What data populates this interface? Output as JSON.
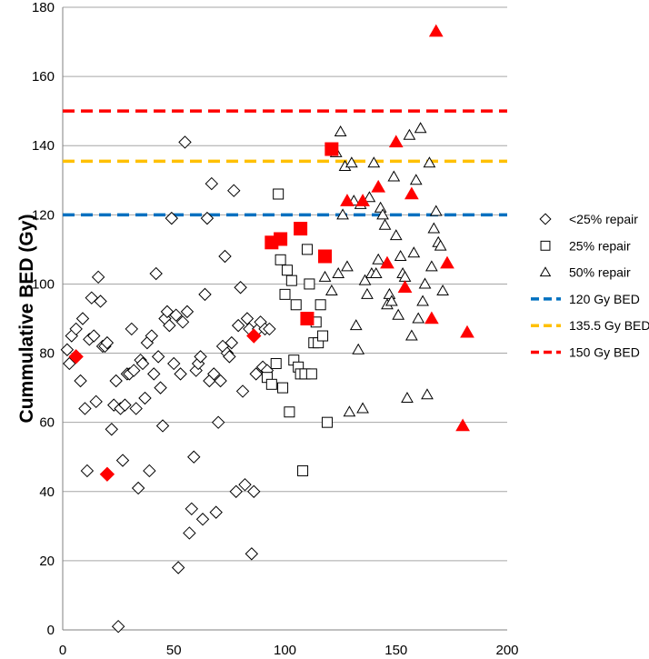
{
  "chart_data": {
    "type": "scatter",
    "title": "",
    "xlabel": "",
    "ylabel": "Cummulative BED (Gy)",
    "xlim": [
      0,
      200
    ],
    "ylim": [
      0,
      180
    ],
    "xticks": [
      0,
      50,
      100,
      150,
      200
    ],
    "yticks": [
      0,
      20,
      40,
      60,
      80,
      100,
      120,
      140,
      160,
      180
    ],
    "grid": "horizontal",
    "legend_position": "right",
    "series": [
      {
        "name": "<25% repair",
        "marker": "diamond",
        "color": "#000000",
        "points": [
          [
            2,
            81
          ],
          [
            3,
            77
          ],
          [
            4,
            85
          ],
          [
            6,
            87
          ],
          [
            8,
            72
          ],
          [
            9,
            90
          ],
          [
            10,
            64
          ],
          [
            11,
            46
          ],
          [
            12,
            84
          ],
          [
            13,
            96
          ],
          [
            14,
            85
          ],
          [
            15,
            66
          ],
          [
            16,
            102
          ],
          [
            17,
            95
          ],
          [
            18,
            82
          ],
          [
            19,
            82
          ],
          [
            20,
            83
          ],
          [
            22,
            58
          ],
          [
            23,
            65
          ],
          [
            24,
            72
          ],
          [
            25,
            1
          ],
          [
            26,
            64
          ],
          [
            27,
            49
          ],
          [
            28,
            65
          ],
          [
            29,
            74
          ],
          [
            30,
            74
          ],
          [
            31,
            87
          ],
          [
            32,
            75
          ],
          [
            33,
            64
          ],
          [
            34,
            41
          ],
          [
            35,
            78
          ],
          [
            36,
            77
          ],
          [
            37,
            67
          ],
          [
            38,
            83
          ],
          [
            39,
            46
          ],
          [
            40,
            85
          ],
          [
            41,
            74
          ],
          [
            42,
            103
          ],
          [
            43,
            79
          ],
          [
            44,
            70
          ],
          [
            45,
            59
          ],
          [
            46,
            90
          ],
          [
            47,
            92
          ],
          [
            48,
            88
          ],
          [
            49,
            119
          ],
          [
            50,
            77
          ],
          [
            51,
            91
          ],
          [
            52,
            18
          ],
          [
            53,
            74
          ],
          [
            54,
            89
          ],
          [
            55,
            141
          ],
          [
            56,
            92
          ],
          [
            57,
            28
          ],
          [
            58,
            35
          ],
          [
            59,
            50
          ],
          [
            60,
            75
          ],
          [
            61,
            77
          ],
          [
            62,
            79
          ],
          [
            63,
            32
          ],
          [
            64,
            97
          ],
          [
            65,
            119
          ],
          [
            66,
            72
          ],
          [
            67,
            129
          ],
          [
            68,
            74
          ],
          [
            69,
            34
          ],
          [
            70,
            60
          ],
          [
            71,
            72
          ],
          [
            72,
            82
          ],
          [
            73,
            108
          ],
          [
            74,
            80
          ],
          [
            75,
            79
          ],
          [
            76,
            83
          ],
          [
            77,
            127
          ],
          [
            78,
            40
          ],
          [
            79,
            88
          ],
          [
            80,
            99
          ],
          [
            81,
            69
          ],
          [
            82,
            42
          ],
          [
            83,
            90
          ],
          [
            84,
            87
          ],
          [
            85,
            22
          ],
          [
            86,
            40
          ],
          [
            87,
            74
          ],
          [
            88,
            87
          ],
          [
            89,
            89
          ],
          [
            90,
            76
          ],
          [
            91,
            87
          ],
          [
            92,
            75
          ],
          [
            93,
            87
          ]
        ]
      },
      {
        "name": "25% repair",
        "marker": "square",
        "color": "#000000",
        "points": [
          [
            92,
            73
          ],
          [
            94,
            71
          ],
          [
            96,
            77
          ],
          [
            97,
            126
          ],
          [
            98,
            107
          ],
          [
            99,
            70
          ],
          [
            100,
            97
          ],
          [
            101,
            104
          ],
          [
            102,
            63
          ],
          [
            103,
            101
          ],
          [
            104,
            78
          ],
          [
            105,
            94
          ],
          [
            106,
            76
          ],
          [
            107,
            74
          ],
          [
            108,
            46
          ],
          [
            109,
            74
          ],
          [
            110,
            110
          ],
          [
            111,
            100
          ],
          [
            112,
            74
          ],
          [
            113,
            83
          ],
          [
            114,
            89
          ],
          [
            115,
            83
          ],
          [
            116,
            94
          ],
          [
            117,
            85
          ],
          [
            119,
            60
          ]
        ]
      },
      {
        "name": "50% repair",
        "marker": "triangle",
        "color": "#000000",
        "points": [
          [
            118,
            102
          ],
          [
            121,
            98
          ],
          [
            123,
            138
          ],
          [
            124,
            103
          ],
          [
            125,
            144
          ],
          [
            126,
            120
          ],
          [
            127,
            134
          ],
          [
            128,
            105
          ],
          [
            129,
            63
          ],
          [
            130,
            135
          ],
          [
            131,
            124
          ],
          [
            132,
            88
          ],
          [
            133,
            81
          ],
          [
            134,
            123
          ],
          [
            135,
            64
          ],
          [
            136,
            101
          ],
          [
            137,
            97
          ],
          [
            138,
            125
          ],
          [
            139,
            103
          ],
          [
            140,
            135
          ],
          [
            141,
            103
          ],
          [
            142,
            107
          ],
          [
            143,
            122
          ],
          [
            144,
            120
          ],
          [
            145,
            117
          ],
          [
            146,
            94
          ],
          [
            147,
            97
          ],
          [
            148,
            95
          ],
          [
            149,
            131
          ],
          [
            150,
            114
          ],
          [
            151,
            91
          ],
          [
            152,
            108
          ],
          [
            153,
            103
          ],
          [
            154,
            102
          ],
          [
            155,
            67
          ],
          [
            156,
            143
          ],
          [
            157,
            85
          ],
          [
            158,
            109
          ],
          [
            159,
            130
          ],
          [
            160,
            90
          ],
          [
            161,
            145
          ],
          [
            162,
            95
          ],
          [
            163,
            100
          ],
          [
            164,
            68
          ],
          [
            165,
            135
          ],
          [
            166,
            105
          ],
          [
            167,
            116
          ],
          [
            168,
            121
          ],
          [
            169,
            112
          ],
          [
            170,
            111
          ],
          [
            171,
            98
          ]
        ]
      },
      {
        "name": "Red diamonds",
        "marker": "diamond-filled",
        "color": "#ff0000",
        "legend": false,
        "points": [
          [
            6,
            79
          ],
          [
            20,
            45
          ],
          [
            86,
            85
          ]
        ]
      },
      {
        "name": "Red squares",
        "marker": "square-filled",
        "color": "#ff0000",
        "legend": false,
        "points": [
          [
            94,
            112
          ],
          [
            98,
            113
          ],
          [
            107,
            116
          ],
          [
            110,
            90
          ],
          [
            118,
            108
          ],
          [
            121,
            139
          ]
        ]
      },
      {
        "name": "Red triangles",
        "marker": "triangle-filled",
        "color": "#ff0000",
        "legend": false,
        "points": [
          [
            128,
            124
          ],
          [
            135,
            124
          ],
          [
            142,
            128
          ],
          [
            146,
            106
          ],
          [
            150,
            141
          ],
          [
            154,
            99
          ],
          [
            157,
            126
          ],
          [
            166,
            90
          ],
          [
            168,
            173
          ],
          [
            173,
            106
          ],
          [
            180,
            59
          ],
          [
            182,
            86
          ]
        ]
      }
    ],
    "reference_lines": [
      {
        "name": "120 Gy BED",
        "y": 120,
        "color": "#0070c0",
        "style": "dashed"
      },
      {
        "name": "135.5 Gy BED",
        "y": 135.5,
        "color": "#ffc000",
        "style": "dashed"
      },
      {
        "name": "150 Gy BED",
        "y": 150,
        "color": "#ff0000",
        "style": "dashed"
      }
    ]
  }
}
